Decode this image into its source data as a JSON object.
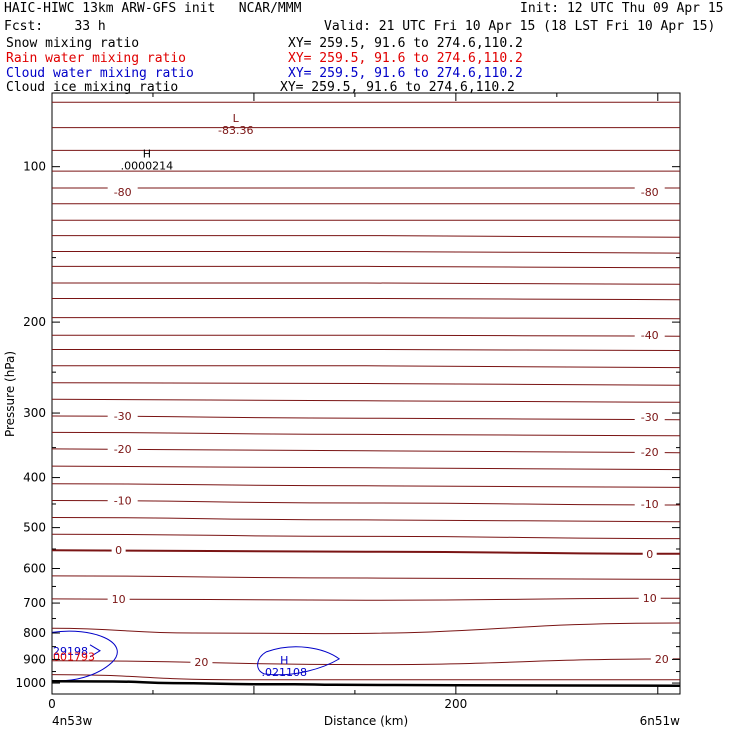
{
  "header": {
    "title": "HAIC-HIWC 13km ARW-GFS init   NCAR/MMM",
    "init": "Init: 12 UTC Thu 09 Apr 15",
    "fcst": "Fcst:    33 h",
    "valid": "Valid: 21 UTC Fri 10 Apr 15 (18 LST Fri 10 Apr 15)",
    "fields": [
      {
        "label": "Snow mixing ratio",
        "xy": "XY= 259.5, 91.6 to 274.6,110.2",
        "color": "#000000"
      },
      {
        "label": "Rain water mixing ratio",
        "xy": "XY= 259.5, 91.6 to 274.6,110.2",
        "color": "#e00000"
      },
      {
        "label": "Cloud water mixing ratio",
        "xy": "XY= 259.5, 91.6 to 274.6,110.2",
        "color": "#0000c8"
      },
      {
        "label": "Cloud ice mixing ratio",
        "xy": "XY= 259.5, 91.6 to 274.6,110.2",
        "color": "#000000"
      }
    ]
  },
  "chart_data": {
    "type": "line",
    "xlabel": "Distance (km)",
    "ylabel": "Pressure (hPa)",
    "xlim": [
      0,
      311
    ],
    "ylim": [
      1050,
      72
    ],
    "y_scale": "log",
    "x_ticks": [
      0,
      200
    ],
    "y_ticks": [
      100,
      200,
      300,
      400,
      500,
      600,
      700,
      800,
      900,
      1000
    ],
    "x_end_labels": {
      "left": "4n53w",
      "right": "6n51w"
    },
    "colors": {
      "temperature": "#7a1414",
      "ground": "#000000",
      "rain": "#e00000",
      "cloud": "#0000c8"
    },
    "isotherms": [
      {
        "p": [
          75,
          75,
          75
        ]
      },
      {
        "p": [
          84,
          84,
          84
        ]
      },
      {
        "p": [
          93,
          93,
          93
        ]
      },
      {
        "p": [
          102,
          102,
          102
        ]
      },
      {
        "p": [
          110,
          110,
          110
        ]
      },
      {
        "p": [
          118,
          118,
          118
        ]
      },
      {
        "p": [
          127,
          127,
          127
        ]
      },
      {
        "p": [
          136,
          136,
          137
        ]
      },
      {
        "p": [
          146,
          146,
          147
        ]
      },
      {
        "p": [
          156,
          156,
          157
        ]
      },
      {
        "p": [
          168,
          168,
          169
        ]
      },
      {
        "p": [
          180,
          180,
          181
        ]
      },
      {
        "p": [
          196,
          196,
          197
        ]
      },
      {
        "p": [
          212,
          212,
          213
        ]
      },
      {
        "p": [
          226,
          226,
          227
        ]
      },
      {
        "p": [
          243,
          243,
          245
        ]
      },
      {
        "p": [
          262,
          263,
          265
        ]
      },
      {
        "p": [
          282,
          284,
          286
        ]
      },
      {
        "p": [
          304,
          307,
          309
        ]
      },
      {
        "p": [
          327,
          330,
          332
        ]
      },
      {
        "p": [
          352,
          355,
          358
        ]
      },
      {
        "p": [
          380,
          383,
          386
        ]
      },
      {
        "p": [
          411,
          415,
          418
        ]
      },
      {
        "p": [
          443,
          448,
          452
        ]
      },
      {
        "p": [
          478,
          483,
          487
        ]
      },
      {
        "p": [
          515,
          520,
          525
        ]
      },
      {
        "p": [
          553,
          557,
          562
        ],
        "bold": true
      },
      {
        "p": [
          620,
          626,
          630
        ]
      },
      {
        "p": [
          687,
          691,
          685
        ]
      },
      {
        "p": [
          783,
          786,
          765
        ],
        "dip": [
          [
            70,
            800
          ],
          [
            135,
            802
          ]
        ]
      },
      {
        "p": [
          905,
          921,
          898
        ]
      },
      {
        "p": [
          963,
          976,
          985
        ],
        "dip": [
          [
            90,
            985
          ]
        ]
      }
    ],
    "ground": [
      [
        0,
        992
      ],
      [
        30,
        993
      ],
      [
        60,
        1000
      ],
      [
        100,
        1005
      ],
      [
        120,
        1005
      ],
      [
        140,
        1008
      ],
      [
        200,
        1010
      ],
      [
        311,
        1012
      ]
    ],
    "labels": [
      {
        "text": "-80",
        "x": 35,
        "p": 112,
        "anchor": "middle"
      },
      {
        "text": "-80",
        "x": 296,
        "p": 112,
        "anchor": "middle"
      },
      {
        "text": "-40",
        "x": 296,
        "p": 212,
        "anchor": "middle"
      },
      {
        "text": "-30",
        "x": 35,
        "p": 304,
        "anchor": "middle"
      },
      {
        "text": "-30",
        "x": 296,
        "p": 305,
        "anchor": "middle"
      },
      {
        "text": "-20",
        "x": 35,
        "p": 352,
        "anchor": "middle"
      },
      {
        "text": "-20",
        "x": 296,
        "p": 357,
        "anchor": "middle"
      },
      {
        "text": "-10",
        "x": 35,
        "p": 443,
        "anchor": "middle"
      },
      {
        "text": "-10",
        "x": 296,
        "p": 450,
        "anchor": "middle"
      },
      {
        "text": "0",
        "x": 33,
        "p": 553,
        "anchor": "middle"
      },
      {
        "text": "0",
        "x": 296,
        "p": 562,
        "anchor": "middle"
      },
      {
        "text": "10",
        "x": 33,
        "p": 687,
        "anchor": "middle"
      },
      {
        "text": "10",
        "x": 296,
        "p": 685,
        "anchor": "middle"
      },
      {
        "text": "20",
        "x": 74,
        "p": 910,
        "anchor": "middle"
      },
      {
        "text": "20",
        "x": 302,
        "p": 898,
        "anchor": "middle"
      }
    ],
    "extrema": [
      {
        "letter": "L",
        "value": "-83.36",
        "x": 91,
        "p": 82,
        "color": "#7a1414"
      },
      {
        "letter": "H",
        "value": ".0000214",
        "x": 47,
        "p": 96,
        "color": "#000000"
      },
      {
        "letter": "H",
        "value": ".021108",
        "x": 115,
        "p": 918,
        "color": "#0000c8"
      }
    ],
    "edge_labels": [
      {
        "text": "29198",
        "p": 866,
        "color": "#0000c8"
      },
      {
        "text": "001793",
        "p": 888,
        "color": "#e00000"
      }
    ]
  }
}
